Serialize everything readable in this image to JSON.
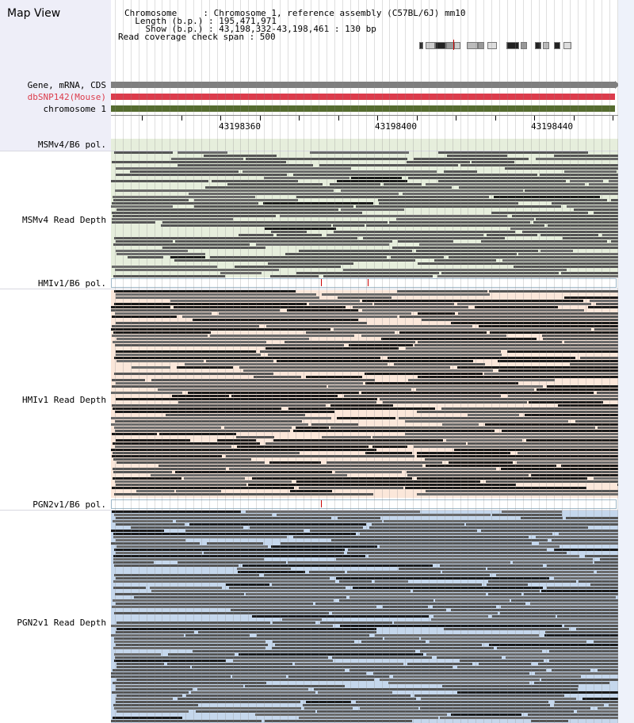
{
  "header": {
    "title": "Map View",
    "lines": [
      "Chromosome     : Chromosome 1, reference assembly (C57BL/6J) mm10",
      "  Length (b.p.) : 195,471,971",
      "    Show (b.p.) : 43,198,332-43,198,461 : 130 bp",
      "Read coverage check span : 500"
    ]
  },
  "tracks": {
    "gene": {
      "label": "Gene, mRNA, CDS",
      "color": "#7f7f7f"
    },
    "snp": {
      "label": "dbSNP142(Mouse)",
      "color": "#dc3c4c"
    },
    "chrom": {
      "label": "chromosome 1",
      "color": "#556b2f"
    }
  },
  "ruler": {
    "positions": [
      "43198360",
      "43198400",
      "43198440"
    ]
  },
  "samples": [
    {
      "pol_label": "MSMv4/B6 pol.",
      "depth_label": "MSMv4 Read Depth",
      "bg": "#e6eedc",
      "strip_bg": "#e6eedc"
    },
    {
      "pol_label": "HMIv1/B6 pol.",
      "depth_label": "HMIv1 Read Depth",
      "bg": "#fbe7da",
      "strip_bg": "#ffffff"
    },
    {
      "pol_label": "PGN2v1/B6 pol.",
      "depth_label": "PGN2v1 Read Depth",
      "bg": "#c5d7ec",
      "strip_bg": "#ffffff"
    }
  ],
  "colors": {
    "left_panel": "#eeeef8",
    "polymorphism_mark": "#cc0000",
    "read": "#555555"
  }
}
